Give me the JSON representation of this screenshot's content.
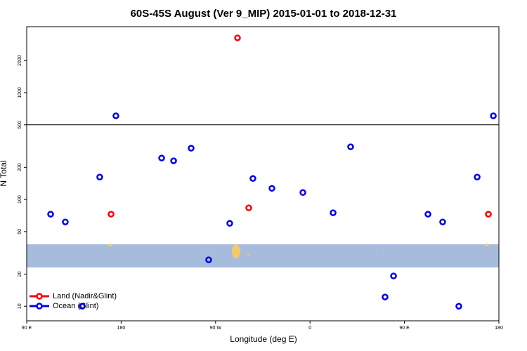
{
  "chart_data": {
    "type": "scatter",
    "title": "60S-45S August (Ver 9_MIP)   2015-01-01 to 2018-12-31",
    "xlabel": "Longitude (deg E)",
    "ylabel": "N Total",
    "xlim": [
      90,
      540
    ],
    "xticks": [
      {
        "value": 90,
        "label": "90 E"
      },
      {
        "value": 180,
        "label": "180"
      },
      {
        "value": 270,
        "label": "90 W"
      },
      {
        "value": 360,
        "label": "0"
      },
      {
        "value": 450,
        "label": "90 E"
      },
      {
        "value": 540,
        "label": "180"
      }
    ],
    "ylim": [
      7.3,
      4150
    ],
    "yticks": [
      10,
      20,
      50,
      100,
      200,
      500,
      1000,
      2000
    ],
    "log_y": true,
    "hline": 500,
    "legend": "bottom-left",
    "series": [
      {
        "name": "Land (Nadir&Glint)",
        "color": "#ff0000",
        "x": [
          170.4,
          290.9,
          301.6,
          530
        ],
        "values": [
          72.8,
          3260,
          83.4,
          72.8
        ]
      },
      {
        "name": "Ocean (Glint)",
        "color": "#0000ee",
        "x": [
          112.8,
          126.8,
          142.9,
          159.6,
          175,
          218.6,
          230,
          246.7,
          263.4,
          283.5,
          305.6,
          323.7,
          353.2,
          382,
          398.7,
          431.5,
          439.6,
          472.4,
          486.4,
          501.8,
          519.3,
          534.7
        ],
        "values": [
          72.8,
          61.5,
          10,
          162,
          607,
          244,
          230,
          302,
          27.2,
          59.7,
          157,
          127,
          116,
          75,
          311,
          12.2,
          19.2,
          72.8,
          61.5,
          10,
          162,
          607
        ]
      }
    ]
  }
}
